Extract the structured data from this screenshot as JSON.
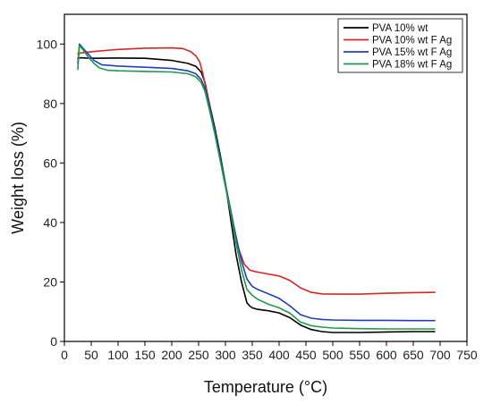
{
  "chart_data": {
    "type": "line",
    "title": "",
    "xlabel": "Temperature (°C)",
    "ylabel": "Weight loss (%)",
    "xlim": [
      0,
      750
    ],
    "ylim": [
      0,
      110
    ],
    "xticks": [
      0,
      50,
      100,
      150,
      200,
      250,
      300,
      350,
      400,
      450,
      500,
      550,
      600,
      650,
      700,
      750
    ],
    "yticks": [
      0,
      20,
      40,
      60,
      80,
      100
    ],
    "grid": false,
    "legend_position": "top-right",
    "series": [
      {
        "name": "PVA 10% wt",
        "color": "#000000",
        "x": [
          25,
          30,
          40,
          60,
          100,
          150,
          200,
          230,
          245,
          255,
          262,
          270,
          280,
          290,
          300,
          310,
          320,
          330,
          340,
          345,
          350,
          360,
          380,
          400,
          420,
          440,
          460,
          480,
          500,
          550,
          600,
          650,
          690
        ],
        "y": [
          95.2,
          95.4,
          95.3,
          95.2,
          95.3,
          95.2,
          94.5,
          93.5,
          92.5,
          90.5,
          87,
          80,
          72,
          63,
          53,
          41,
          29,
          20,
          13,
          12,
          11.3,
          10.8,
          10.3,
          9.6,
          8,
          5.5,
          4,
          3.3,
          3,
          3,
          3.2,
          3.3,
          3.3
        ]
      },
      {
        "name": "PVA 10% wt F Ag",
        "color": "#d62728",
        "x": [
          25,
          30,
          40,
          60,
          100,
          150,
          200,
          220,
          235,
          245,
          252,
          258,
          265,
          275,
          285,
          295,
          305,
          315,
          325,
          335,
          345,
          355,
          370,
          400,
          420,
          440,
          460,
          480,
          500,
          550,
          600,
          650,
          690
        ],
        "y": [
          96.8,
          97,
          97.2,
          97.6,
          98.2,
          98.6,
          98.7,
          98.5,
          97.5,
          96,
          94,
          90,
          84,
          75,
          66,
          57,
          48,
          39,
          31,
          26,
          24,
          23.5,
          23,
          22,
          20.5,
          18,
          16.5,
          16,
          15.9,
          15.9,
          16.2,
          16.4,
          16.5
        ]
      },
      {
        "name": "PVA 15% wt F Ag",
        "color": "#1f3fbf",
        "x": [
          25,
          28,
          35,
          45,
          55,
          70,
          85,
          100,
          150,
          200,
          230,
          245,
          255,
          262,
          270,
          280,
          290,
          300,
          310,
          320,
          330,
          340,
          350,
          360,
          380,
          400,
          420,
          440,
          460,
          480,
          500,
          550,
          600,
          650,
          690
        ],
        "y": [
          93.5,
          100,
          98.5,
          96.5,
          94.5,
          93,
          92.8,
          92.6,
          92.2,
          91.8,
          91,
          90,
          88,
          85,
          79,
          71,
          62,
          53,
          44,
          35,
          27,
          21,
          18.5,
          17.5,
          16,
          14.5,
          12,
          9,
          7.8,
          7.4,
          7.2,
          7.1,
          7.1,
          7,
          7
        ]
      },
      {
        "name": "PVA 18% wt F Ag",
        "color": "#1e9a4a",
        "x": [
          25,
          28,
          35,
          45,
          55,
          65,
          80,
          100,
          150,
          200,
          230,
          245,
          255,
          262,
          270,
          280,
          290,
          300,
          310,
          320,
          330,
          340,
          350,
          360,
          380,
          400,
          420,
          440,
          460,
          480,
          500,
          550,
          600,
          650,
          690
        ],
        "y": [
          91.5,
          99.5,
          98,
          95.5,
          93.5,
          92,
          91.2,
          91,
          90.8,
          90.6,
          90,
          89,
          87,
          84,
          78,
          70,
          61,
          52,
          43,
          33,
          24,
          17.5,
          15.5,
          14.2,
          12.5,
          11.3,
          9.5,
          6.5,
          5.3,
          4.8,
          4.5,
          4.3,
          4.2,
          4.2,
          4.2
        ]
      }
    ]
  }
}
